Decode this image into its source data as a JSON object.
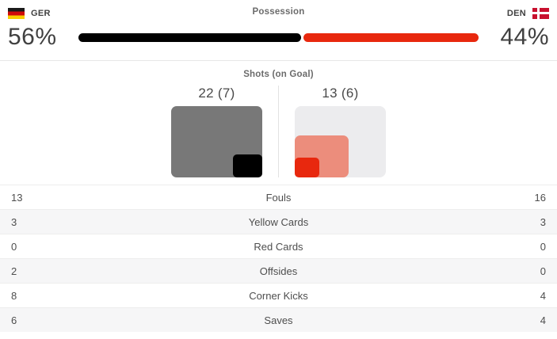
{
  "colors": {
    "ger": "#000000",
    "den": "#e8280e",
    "shots-ger": "#787878",
    "shots-ger-ongoal": "#000000",
    "shots-den": "#ec8d7c",
    "shots-den-ongoal": "#e8280e",
    "square-bg": "#ececee",
    "divider": "#e7e7e7",
    "row-stripe": "#f6f6f7",
    "text-dark": "#404040",
    "text-gray": "#6b6b6b",
    "text-row": "#4e4e4e"
  },
  "header": {
    "home_team": "GER",
    "away_team": "DEN",
    "section_title": "Possession"
  },
  "possession": {
    "home_pct_label": "56%",
    "away_pct_label": "44%",
    "home_value": 56,
    "away_value": 44
  },
  "shots": {
    "title": "Shots (on Goal)",
    "home_label": "22 (7)",
    "away_label": "13 (6)",
    "home_shots": 22,
    "home_on_goal": 7,
    "away_shots": 13,
    "away_on_goal": 6,
    "scale_max": 22
  },
  "stats": {
    "rows": [
      {
        "home": "13",
        "label": "Fouls",
        "away": "16"
      },
      {
        "home": "3",
        "label": "Yellow Cards",
        "away": "3"
      },
      {
        "home": "0",
        "label": "Red Cards",
        "away": "0"
      },
      {
        "home": "2",
        "label": "Offsides",
        "away": "0"
      },
      {
        "home": "8",
        "label": "Corner Kicks",
        "away": "4"
      },
      {
        "home": "6",
        "label": "Saves",
        "away": "4"
      }
    ]
  },
  "chart_data": [
    {
      "type": "bar",
      "title": "Possession",
      "categories": [
        "GER",
        "DEN"
      ],
      "values": [
        56,
        44
      ],
      "unit": "%",
      "colors": [
        "#000000",
        "#e8280e"
      ],
      "legend_position": "none",
      "grid": false
    },
    {
      "type": "bar",
      "title": "Shots (on Goal)",
      "categories": [
        "GER",
        "DEN"
      ],
      "series": [
        {
          "name": "Shots",
          "values": [
            22,
            13
          ]
        },
        {
          "name": "Shots on Goal",
          "values": [
            7,
            6
          ]
        }
      ],
      "data_labels": [
        "22 (7)",
        "13 (6)"
      ],
      "scale_max": 22,
      "note": "rendered as nested rounded squares; side length proportional to value/scale_max",
      "grid": false,
      "legend_position": "none"
    }
  ]
}
